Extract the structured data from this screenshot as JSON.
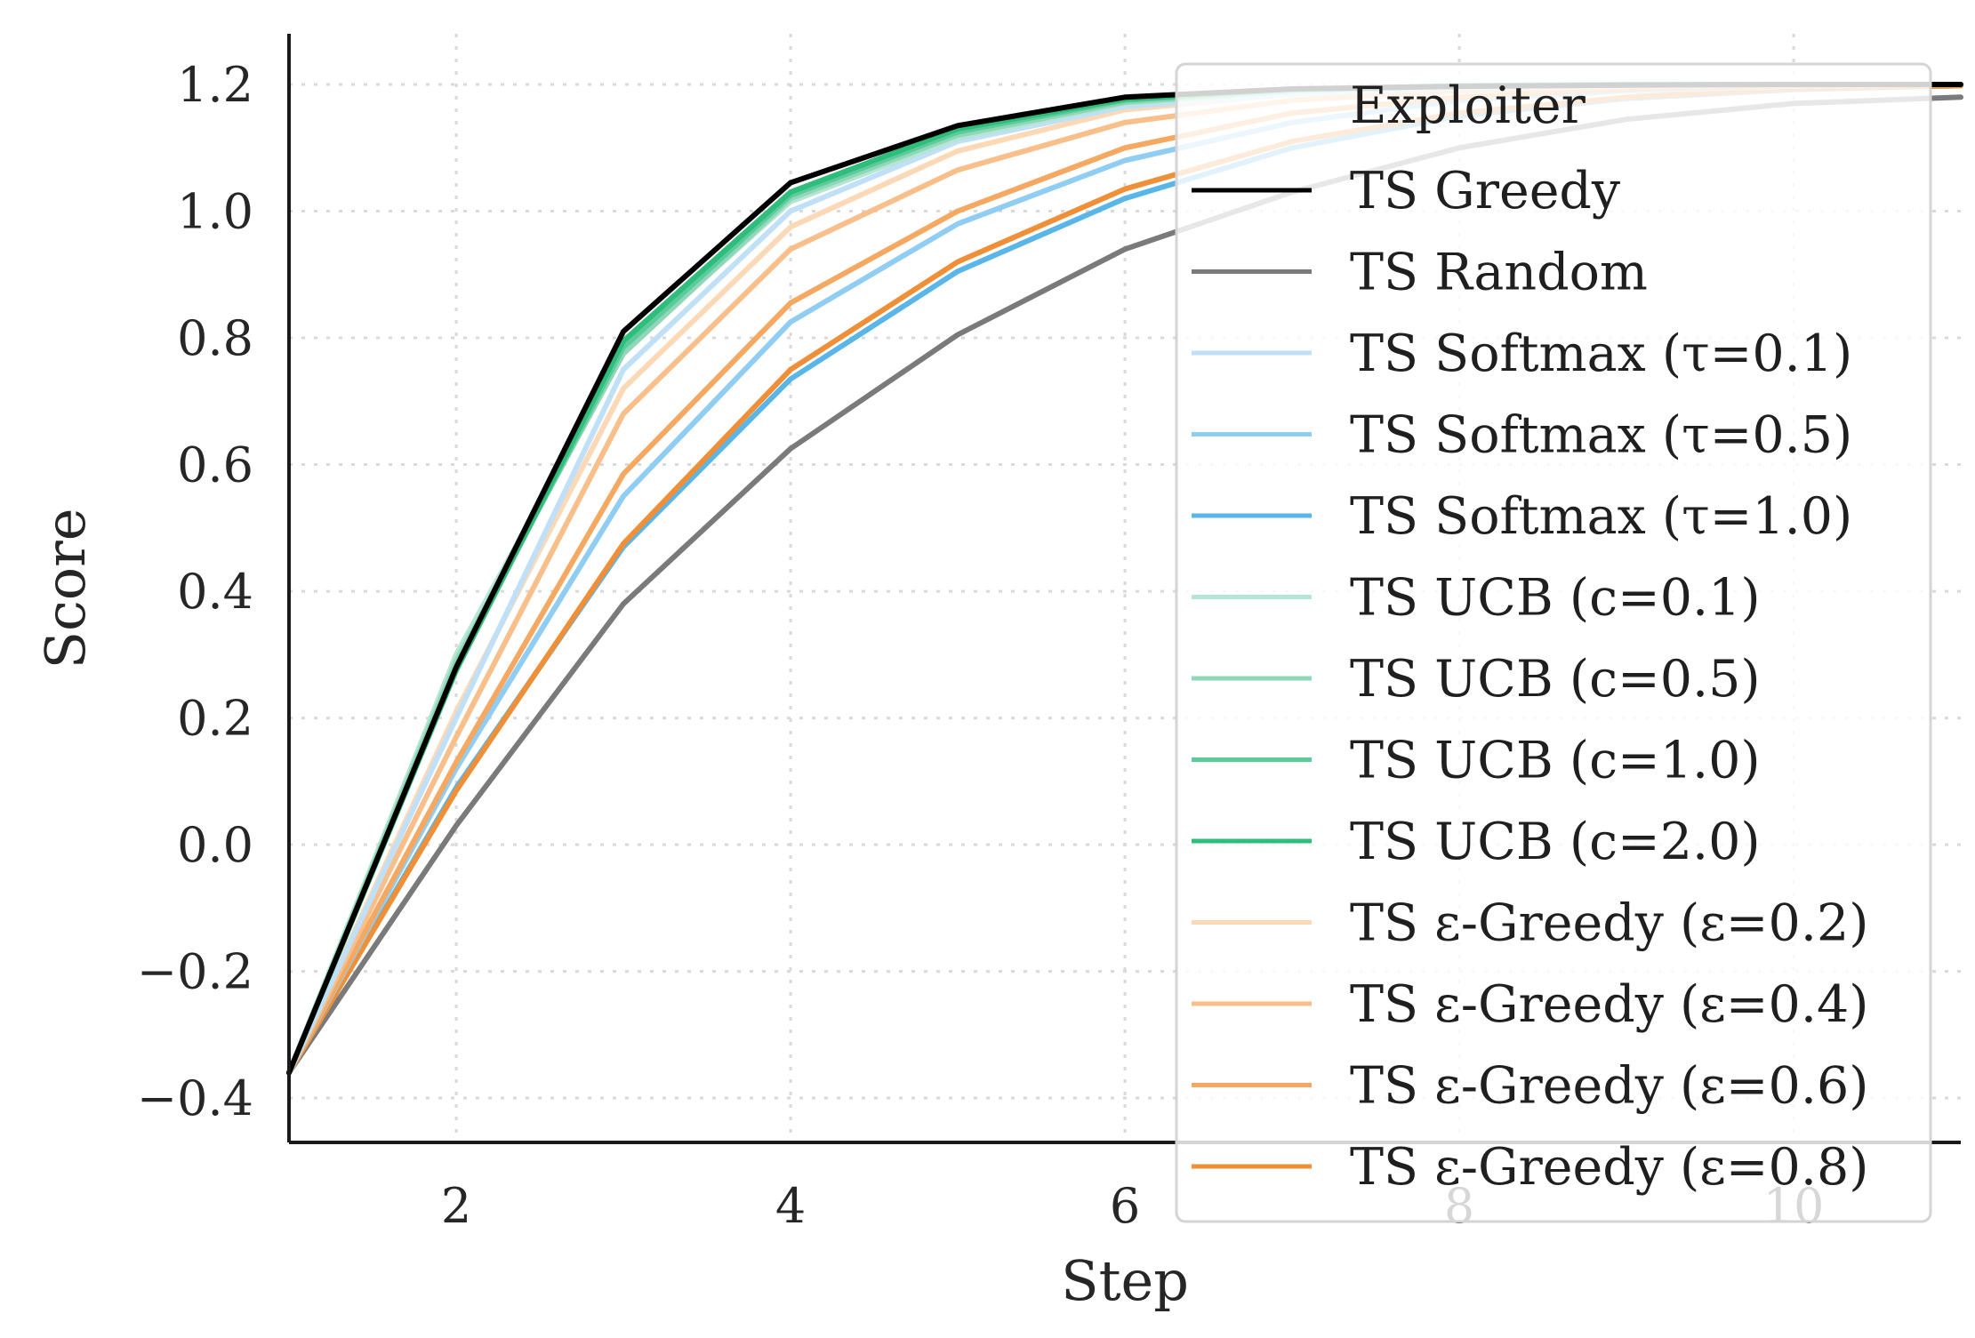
{
  "chart_data": {
    "type": "line",
    "xlabel": "Step",
    "ylabel": "Score",
    "xlim": [
      1,
      11
    ],
    "ylim": [
      -0.47,
      1.28
    ],
    "xticks": [
      2,
      4,
      6,
      8,
      10
    ],
    "yticks": [
      -0.4,
      -0.2,
      0.0,
      0.2,
      0.4,
      0.6,
      0.8,
      1.0,
      1.2
    ],
    "ytick_labels": [
      "−0.4",
      "−0.2",
      "0.0",
      "0.2",
      "0.4",
      "0.6",
      "0.8",
      "1.0",
      "1.2"
    ],
    "xtick_labels": [
      "2",
      "4",
      "6",
      "8",
      "10"
    ],
    "grid": true,
    "legend": {
      "title": "Exploiter",
      "position": "top-right"
    },
    "x": [
      1,
      2,
      3,
      4,
      5,
      6,
      7,
      8,
      9,
      10,
      11
    ],
    "series": [
      {
        "name": "TS Greedy",
        "color": "#000000",
        "values": [
          -0.36,
          0.28,
          0.81,
          1.045,
          1.135,
          1.18,
          1.193,
          1.197,
          1.199,
          1.2,
          1.2
        ]
      },
      {
        "name": "TS Random",
        "color": "#7a7a7a",
        "values": [
          -0.36,
          0.03,
          0.38,
          0.625,
          0.805,
          0.94,
          1.03,
          1.1,
          1.145,
          1.17,
          1.18
        ]
      },
      {
        "name": "TS Softmax (τ=0.1)",
        "color": "#bfe0f7",
        "values": [
          -0.36,
          0.2,
          0.75,
          1.0,
          1.11,
          1.165,
          1.185,
          1.195,
          1.198,
          1.2,
          1.2
        ]
      },
      {
        "name": "TS Softmax (τ=0.5)",
        "color": "#8fcdf2",
        "values": [
          -0.36,
          0.12,
          0.55,
          0.825,
          0.98,
          1.08,
          1.14,
          1.175,
          1.19,
          1.197,
          1.2
        ]
      },
      {
        "name": "TS Softmax (τ=1.0)",
        "color": "#5ab6e8",
        "values": [
          -0.36,
          0.09,
          0.47,
          0.735,
          0.905,
          1.02,
          1.1,
          1.15,
          1.178,
          1.192,
          1.198
        ]
      },
      {
        "name": "TS UCB (c=0.1)",
        "color": "#b5e6d3",
        "values": [
          -0.36,
          0.3,
          0.78,
          1.015,
          1.115,
          1.17,
          1.19,
          1.196,
          1.199,
          1.2,
          1.2
        ]
      },
      {
        "name": "TS UCB (c=0.5)",
        "color": "#8fd7b8",
        "values": [
          -0.36,
          0.29,
          0.775,
          1.02,
          1.12,
          1.172,
          1.19,
          1.197,
          1.199,
          1.2,
          1.2
        ]
      },
      {
        "name": "TS UCB (c=1.0)",
        "color": "#5ccb9c",
        "values": [
          -0.36,
          0.28,
          0.785,
          1.025,
          1.125,
          1.175,
          1.192,
          1.197,
          1.199,
          1.2,
          1.2
        ]
      },
      {
        "name": "TS UCB (c=2.0)",
        "color": "#2ebd7a",
        "values": [
          -0.36,
          0.275,
          0.795,
          1.03,
          1.13,
          1.177,
          1.192,
          1.198,
          1.2,
          1.2,
          1.2
        ]
      },
      {
        "name": "TS ε-Greedy (ε=0.2)",
        "color": "#fcd9b6",
        "values": [
          -0.36,
          0.21,
          0.72,
          0.975,
          1.095,
          1.16,
          1.185,
          1.195,
          1.199,
          1.2,
          1.2
        ]
      },
      {
        "name": "TS ε-Greedy (ε=0.4)",
        "color": "#f8bf8a",
        "values": [
          -0.36,
          0.17,
          0.68,
          0.94,
          1.065,
          1.14,
          1.175,
          1.19,
          1.197,
          1.2,
          1.2
        ]
      },
      {
        "name": "TS ε-Greedy (ε=0.6)",
        "color": "#f4a861",
        "values": [
          -0.36,
          0.13,
          0.585,
          0.855,
          1.0,
          1.1,
          1.155,
          1.18,
          1.193,
          1.198,
          1.2
        ]
      },
      {
        "name": "TS ε-Greedy (ε=0.8)",
        "color": "#ef9038",
        "values": [
          -0.36,
          0.085,
          0.475,
          0.75,
          0.92,
          1.035,
          1.11,
          1.155,
          1.18,
          1.193,
          1.198
        ]
      }
    ]
  }
}
